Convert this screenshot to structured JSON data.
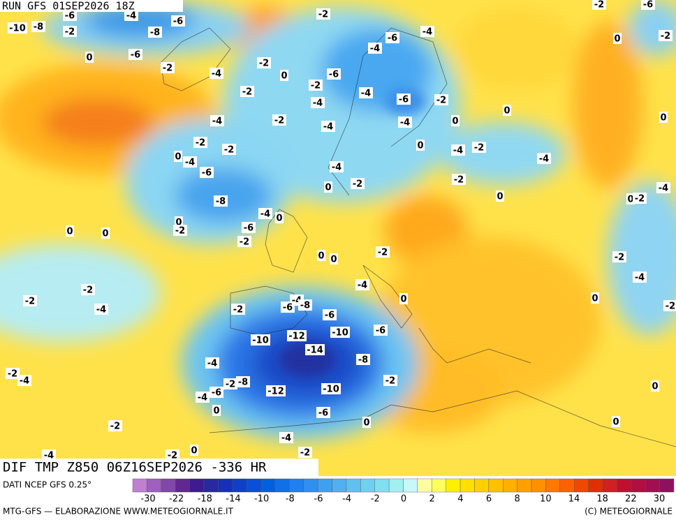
{
  "header": {
    "run": "RUN GFS 01SEP2026 18Z"
  },
  "footer": {
    "field": "DIF TMP Z850 06Z16SEP2026 -336 HR",
    "source": "DATI NCEP GFS 0.25°",
    "credit": "MTG-GFS — ELABORAZIONE WWW.METEOGIORNALE.IT",
    "copyright": "(C) METEOGIORNALE"
  },
  "colorbar": {
    "colors": [
      "#c080d0",
      "#a060c0",
      "#8048a8",
      "#602890",
      "#3c1c90",
      "#2828a0",
      "#1830b8",
      "#1040c8",
      "#0850d8",
      "#0060e0",
      "#1070e8",
      "#2080f0",
      "#3090f0",
      "#40a0f0",
      "#50b0f0",
      "#60c0f0",
      "#70d0f0",
      "#80e0f0",
      "#a0f0f0",
      "#c8f8f8",
      "#ffffa0",
      "#ffff60",
      "#fff000",
      "#ffe000",
      "#ffd000",
      "#ffc000",
      "#ffb000",
      "#ffa000",
      "#ff9000",
      "#ff7800",
      "#ff6000",
      "#f04800",
      "#e03000",
      "#d02020",
      "#c01030",
      "#b01040",
      "#a01050",
      "#901060"
    ],
    "ticks": [
      -30,
      -22,
      -18,
      -14,
      -10,
      -8,
      -6,
      -4,
      -2,
      0,
      2,
      4,
      6,
      8,
      10,
      14,
      18,
      22,
      30
    ]
  },
  "contour_labels": [
    -10,
    -8,
    -6,
    -2,
    -4,
    -8,
    -6,
    0,
    -6,
    -2,
    -4,
    -2,
    0,
    -2,
    -6,
    -4,
    -4,
    -6,
    -2,
    -4,
    -2,
    -4,
    -6,
    -2,
    0,
    -4,
    -2,
    -4,
    -4,
    0,
    0,
    -4,
    -2,
    -4,
    -2,
    -2,
    0,
    -4,
    -6,
    -4,
    0,
    -2,
    -2,
    0,
    -8,
    -4,
    0,
    -6,
    -2,
    0,
    -2,
    0,
    0,
    -2,
    0,
    0,
    -2,
    -4,
    -2,
    -2,
    -4,
    -4,
    0,
    -4,
    -6,
    -8,
    -2,
    -6,
    0,
    -10,
    -12,
    -10,
    -6,
    -14,
    -8,
    -4,
    -2,
    -4,
    -8,
    -2,
    -6,
    -4,
    -12,
    -10,
    -2,
    -6,
    0,
    0,
    -2,
    0,
    0,
    -4,
    -2,
    -4,
    0,
    -2,
    -2,
    -6,
    -2,
    0,
    0,
    -4,
    0,
    -2,
    -2
  ]
}
